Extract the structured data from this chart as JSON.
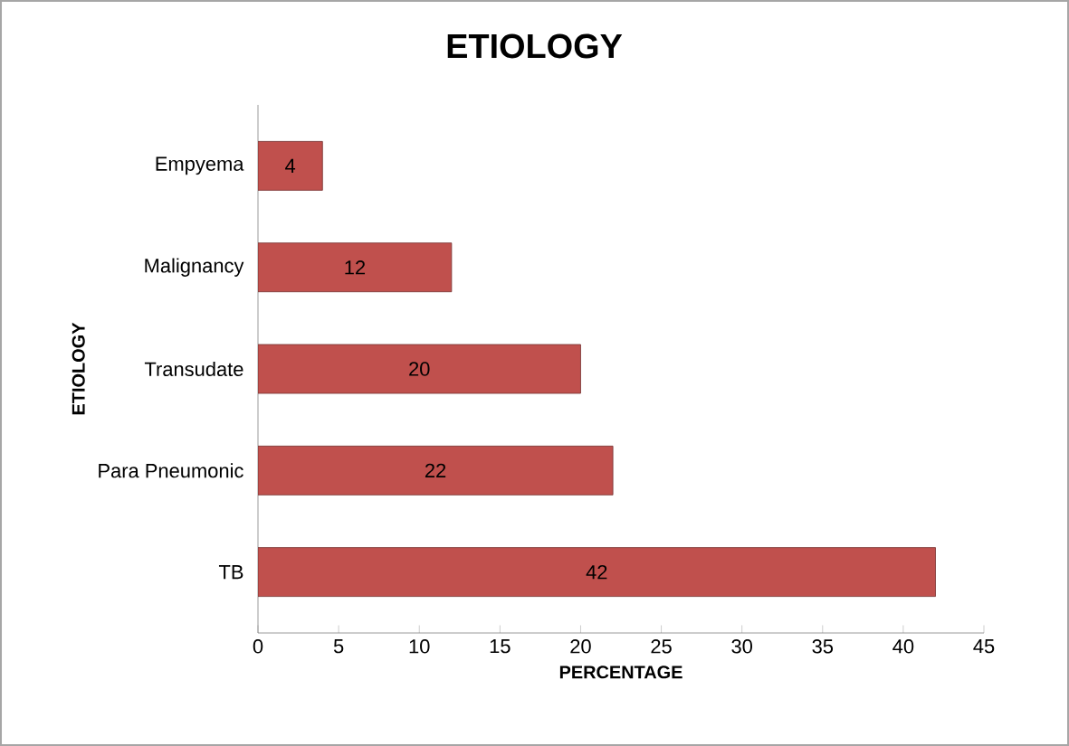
{
  "chart_data": {
    "type": "bar",
    "orientation": "horizontal",
    "title": "ETIOLOGY",
    "xlabel": "PERCENTAGE",
    "ylabel": "ETIOLOGY",
    "categories": [
      "Empyema",
      "Malignancy",
      "Transudate",
      "Para Pneumonic",
      "TB"
    ],
    "values": [
      4,
      12,
      20,
      22,
      42
    ],
    "color": "#c0504d",
    "data_labels": true,
    "xlim": [
      0,
      45
    ],
    "xticks": [
      0,
      5,
      10,
      15,
      20,
      25,
      30,
      35,
      40,
      45
    ],
    "grid": false
  }
}
